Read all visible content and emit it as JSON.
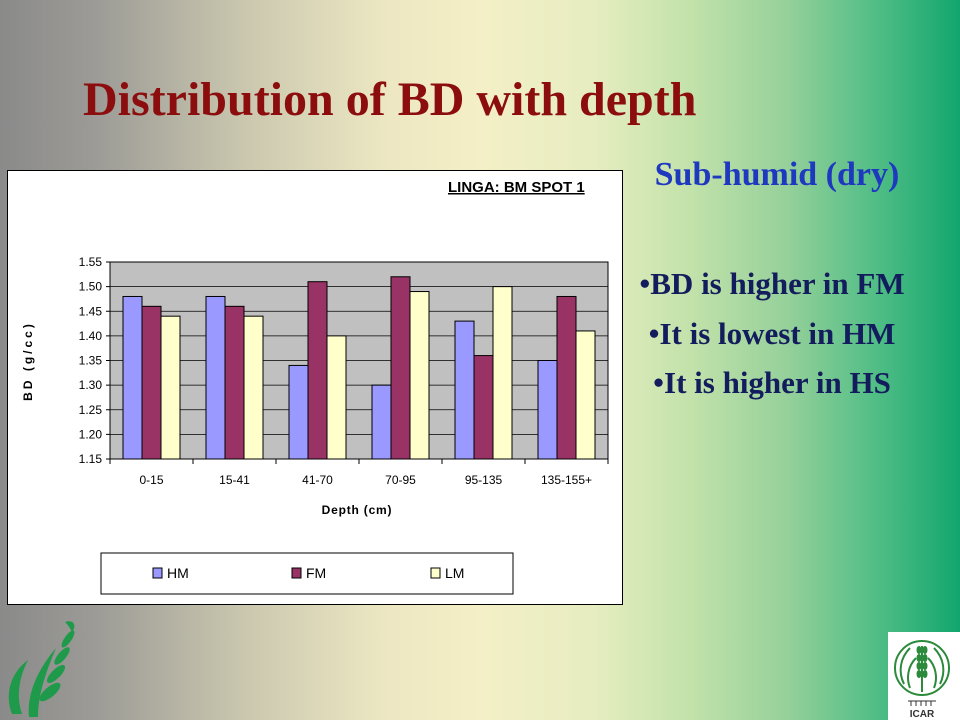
{
  "slide": {
    "title": "Distribution of BD with depth",
    "subtitle": "Sub-humid (dry)",
    "bullet_marker": "•",
    "bullets": [
      "BD is higher in FM",
      "It is lowest in HM",
      "It is higher in HS"
    ]
  },
  "colors": {
    "background_left": "#8a8a8a",
    "background_middle": "#f4efc6",
    "background_right": "#12a66e",
    "title": "#8b0d0d",
    "subtitle": "#1f38c0",
    "bullets": "#131c5c",
    "logo_green": "#1e9a4a"
  },
  "chart_data": {
    "type": "bar",
    "title": "LINGA: BM SPOT 1",
    "xlabel": "Depth (cm)",
    "ylabel": "BD (g/cc)",
    "categories": [
      "0-15",
      "15-41",
      "41-70",
      "70-95",
      "95-135",
      "135-155+"
    ],
    "series": [
      {
        "name": "HM",
        "color": "#9999ff",
        "values": [
          1.48,
          1.48,
          1.34,
          1.3,
          1.43,
          1.35
        ]
      },
      {
        "name": "FM",
        "color": "#993366",
        "values": [
          1.46,
          1.46,
          1.51,
          1.52,
          1.36,
          1.48
        ]
      },
      {
        "name": "LM",
        "color": "#ffffcc",
        "values": [
          1.44,
          1.44,
          1.4,
          1.49,
          1.5,
          1.41
        ]
      }
    ],
    "ylim": [
      1.15,
      1.55
    ],
    "y_tick_labels": [
      "1.15",
      "1.20",
      "1.25",
      "1.30",
      "1.35",
      "1.40",
      "1.45",
      "1.50",
      "1.55"
    ],
    "grid": true,
    "legend_position": "bottom",
    "plot_background": "#c0c0c0"
  },
  "logos": {
    "left": {
      "icon": "wheat-leaf-logo-icon"
    },
    "right": {
      "icon": "icar-emblem-icon",
      "lettering": "ICAR",
      "lettering_hindi": "भाकृअनुप"
    }
  }
}
